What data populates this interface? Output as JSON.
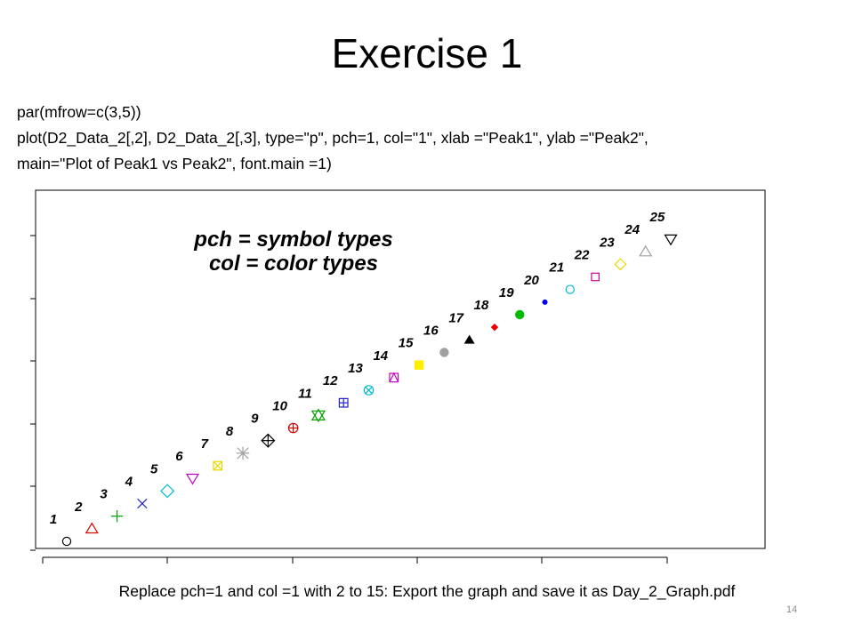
{
  "slide": {
    "title": "Exercise 1",
    "code_lines": [
      "par(mfrow=c(3,5))",
      "plot(D2_Data_2[,2], D2_Data_2[,3], type=\"p\", pch=1, col=\"1\", xlab =\"Peak1\", ylab =\"Peak2\",",
      "main=\"Plot of Peak1 vs Peak2\", font.main =1)"
    ],
    "caption": "Replace pch=1 and col =1  with 2 to 15: Export the graph and save it as Day_2_Graph.pdf",
    "page_number": "14"
  },
  "chart_data": {
    "type": "scatter",
    "annotation_lines": [
      "pch = symbol types",
      "col = color types"
    ],
    "x": [
      1,
      2,
      3,
      4,
      5,
      6,
      7,
      8,
      9,
      10,
      11,
      12,
      13,
      14,
      15,
      16,
      17,
      18,
      19,
      20,
      21,
      22,
      23,
      24,
      25
    ],
    "y": [
      1,
      2,
      3,
      4,
      5,
      6,
      7,
      8,
      9,
      10,
      11,
      12,
      13,
      14,
      15,
      16,
      17,
      18,
      19,
      20,
      21,
      22,
      23,
      24,
      25
    ],
    "point_labels": [
      "1",
      "2",
      "3",
      "4",
      "5",
      "6",
      "7",
      "8",
      "9",
      "10",
      "11",
      "12",
      "13",
      "14",
      "15",
      "16",
      "17",
      "18",
      "19",
      "20",
      "21",
      "22",
      "23",
      "24",
      "25"
    ],
    "pch": [
      1,
      2,
      3,
      4,
      5,
      6,
      7,
      8,
      9,
      10,
      11,
      12,
      13,
      14,
      15,
      16,
      17,
      18,
      19,
      20,
      21,
      22,
      23,
      24,
      25
    ],
    "colors": [
      "#000000",
      "#d40000",
      "#00a000",
      "#2020d0",
      "#00bcd4",
      "#c000c0",
      "#e6d800",
      "#a0a0a0",
      "#000000",
      "#d40000",
      "#00a000",
      "#2020d0",
      "#00bcd4",
      "#c000c0",
      "#ffee00",
      "#a0a0a0",
      "#000000",
      "#ee0000",
      "#00bb00",
      "#0000ee",
      "#00bcd4",
      "#cc0088",
      "#e6d800",
      "#a0a0a0",
      "#000000"
    ],
    "axis_ticks": "unlabeled",
    "grid": false,
    "legend": "none"
  }
}
